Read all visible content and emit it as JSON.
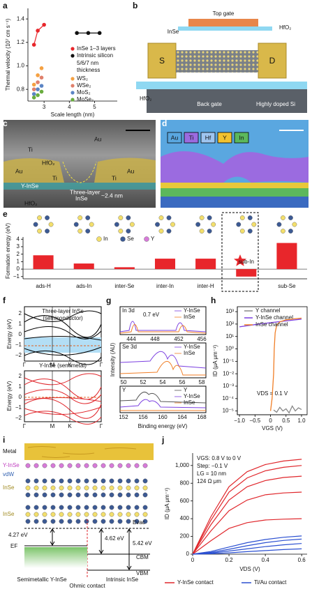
{
  "panel_labels": [
    "a",
    "b",
    "c",
    "d",
    "e",
    "f",
    "g",
    "h",
    "i",
    "j"
  ],
  "chart_data": [
    {
      "type": "scatter",
      "ylabel": "Thermal velocity (10⁷ cm s⁻¹)",
      "xlabel": "Scale length (nm)",
      "xlim": [
        2.36,
        5.9
      ],
      "xticks": [
        3,
        4,
        5
      ],
      "ylim": [
        0.7,
        1.49
      ],
      "yticks": [
        0.8,
        {
          "value": 1,
          "label": "1.0"
        },
        1.2,
        1.4
      ],
      "legend_note": [
        "5/6/7 nm",
        "thickness"
      ],
      "series": [
        {
          "name": "InSe 1–3 layers",
          "color": "#e8262b",
          "x": [
            2.6,
            2.75,
            3.0
          ],
          "values": [
            1.18,
            1.3,
            1.35
          ],
          "line": true
        },
        {
          "name": "Intrinsic silicon",
          "color": "#111111",
          "x": [
            4.3,
            4.75,
            5.2
          ],
          "values": [
            1.28,
            1.28,
            1.28
          ],
          "line": true
        },
        {
          "name": "WS₂",
          "color": "#f5a142",
          "x": [
            2.6,
            2.75,
            2.9
          ],
          "values": [
            0.84,
            0.92,
            0.98
          ]
        },
        {
          "name": "WSe₂",
          "color": "#e0806c",
          "x": [
            2.6,
            2.75,
            2.9
          ],
          "values": [
            0.8,
            0.86,
            0.9
          ]
        },
        {
          "name": "MoS₂",
          "color": "#5b84c4",
          "x": [
            2.6,
            2.75,
            2.9
          ],
          "values": [
            0.76,
            0.8,
            0.83
          ]
        },
        {
          "name": "MoSe₂",
          "color": "#6aad3f",
          "x": [
            2.6,
            2.75,
            2.9
          ],
          "values": [
            0.73,
            0.75,
            0.78
          ]
        }
      ]
    },
    {
      "type": "bar",
      "ylabel": "Formation energy (eV)",
      "categories": [
        "ads-H",
        "ads-In",
        "inter-Se",
        "inter-In",
        "inter-H",
        "sub-In",
        "sub-Se"
      ],
      "values": [
        1.85,
        0.75,
        0.25,
        1.4,
        1.4,
        -1.0,
        3.5
      ],
      "color": "#e8262b",
      "ylim": [
        -1.3,
        4.3
      ],
      "yticks": [
        {
          "value": -1,
          "label": "−1"
        },
        0,
        1,
        2,
        3,
        4
      ],
      "legend": [
        {
          "name": "In",
          "color": "#f3df6c"
        },
        {
          "name": "Se",
          "color": "#3c5a94"
        },
        {
          "name": "Y",
          "color": "#d77bd9"
        }
      ]
    },
    {
      "type": "line",
      "log_y": true,
      "ylabel": "ID (μA μm⁻¹)",
      "xlabel": "VGS (V)",
      "annotation": "VDS = 0.1 V",
      "xlim": [
        -1.07,
        1.18
      ],
      "xticks": [
        {
          "value": -1,
          "label": "−1.0"
        },
        {
          "value": -0.5,
          "label": "−0.5"
        },
        0,
        0.5,
        {
          "value": 1,
          "label": "1.0"
        }
      ],
      "ylim": [
        5e-06,
        2500
      ],
      "yticks": [
        {
          "value": 1000,
          "label": "10³"
        },
        {
          "value": 100,
          "label": "10²"
        },
        {
          "value": 10,
          "label": "10¹"
        },
        {
          "value": 1,
          "label": "10⁰"
        },
        {
          "value": 0.1,
          "label": "10⁻¹"
        },
        {
          "value": 0.01,
          "label": "10⁻²"
        },
        {
          "value": 0.001,
          "label": "10⁻³"
        },
        {
          "value": 0.0001,
          "label": "10⁻⁴"
        },
        {
          "value": 1e-05,
          "label": "10⁻⁵"
        }
      ],
      "series": [
        {
          "name": "Y channel",
          "color": "#888888",
          "x": [
            0.1,
            0.2,
            0.3,
            0.4,
            0.5,
            0.6,
            0.7,
            0.8,
            0.9,
            1.0
          ],
          "values": [
            1.2e-05,
            8e-06,
            2e-05,
            1e-05,
            1.5e-05,
            7e-06,
            2.5e-05,
            1e-05,
            1.8e-05,
            1.3e-05
          ]
        },
        {
          "name": "Y-InSe channel",
          "color": "#7b3fe0",
          "x": [
            -1,
            -0.5,
            0,
            0.5,
            1
          ],
          "values": [
            60,
            90,
            130,
            180,
            250
          ]
        },
        {
          "name": "InSe channel",
          "color": "#f07e26",
          "x": [
            0,
            0.05,
            0.1,
            0.12,
            0.15,
            0.2,
            0.3,
            0.5,
            0.75,
            1.0
          ],
          "values": [
            1e-05,
            0.0001,
            0.01,
            1,
            20,
            80,
            150,
            220,
            260,
            300
          ]
        }
      ]
    },
    {
      "type": "line",
      "ylabel": "ID (μA μm⁻¹)",
      "xlabel": "VDS (V)",
      "annotations": [
        "VGS: 0.8 V to 0 V",
        "Step: −0.1 V",
        "LG = 10 nm",
        "124 Ω μm"
      ],
      "xlim": [
        0,
        0.63
      ],
      "xticks": [
        0,
        0.2,
        0.4,
        0.6
      ],
      "ylim": [
        0,
        1140
      ],
      "yticks": [
        0,
        200,
        400,
        600,
        800,
        {
          "value": 1000,
          "label": "1,000"
        }
      ],
      "x": [
        0,
        0.1,
        0.2,
        0.3,
        0.4,
        0.5,
        0.6
      ],
      "series": [
        {
          "name": "Y-InSe contact",
          "color": "#e0262b",
          "curves": [
            [
              0,
              420,
              760,
              930,
              1010,
              1050,
              1070
            ],
            [
              0,
              380,
              700,
              860,
              940,
              980,
              1000
            ],
            [
              0,
              330,
              610,
              760,
              830,
              865,
              880
            ],
            [
              0,
              260,
              490,
              610,
              670,
              690,
              700
            ],
            [
              0,
              150,
              290,
              355,
              385,
              395,
              400
            ]
          ]
        },
        {
          "name": "Ti/Au contact",
          "color": "#2a4fd1",
          "curves": [
            [
              0,
              30,
              80,
              130,
              165,
              190,
              205
            ],
            [
              0,
              20,
              55,
              95,
              130,
              155,
              170
            ],
            [
              0,
              12,
              35,
              60,
              85,
              105,
              120
            ],
            [
              0,
              5,
              15,
              28,
              40,
              52,
              60
            ]
          ]
        }
      ]
    }
  ],
  "b": [
    "Top gate",
    "InSe",
    "HfO₂",
    "S",
    "D",
    "HfO₂",
    "Back gate",
    "Highly doped Si"
  ],
  "c": [
    "Au",
    "Ti",
    "HfO₂",
    "Au",
    "Au",
    "Y-InSe",
    "Ti",
    "Ti",
    "Three-layer",
    "InSe",
    "~2.4 nm",
    "HfO₂"
  ],
  "d": [
    "Au",
    "Ti",
    "Hf",
    "Y",
    "In"
  ],
  "f": {
    "top_title": [
      "Three-layer InSe",
      "(semiconductor)"
    ],
    "bottom_title": "Y-InSe (semimetal)",
    "ylabels": [
      "Energy (eV)",
      "Energy (eV)"
    ],
    "top_yticks": [
      "2",
      "1",
      "0",
      "−1",
      "−2"
    ],
    "bottom_yticks": [
      "2",
      "1",
      "0",
      "−1",
      "−2"
    ],
    "top_kpoints": [
      "Γ",
      "M",
      "K",
      "Γ"
    ],
    "bottom_kpoints": [
      "Γ",
      "M",
      "K",
      "Γ"
    ]
  },
  "g": {
    "titles": [
      "In 3d",
      "Se 3d",
      "Y"
    ],
    "shift": "0.7 eV",
    "legend1": [
      "Y-InSe",
      "InSe"
    ],
    "legend2": [
      "Y-InSe",
      "InSe"
    ],
    "legend3": [
      "Y",
      "Y-InSe",
      "InSe"
    ],
    "xticks1": [
      "444",
      "448",
      "452",
      "456"
    ],
    "xticks2": [
      "50",
      "52",
      "54",
      "56",
      "58"
    ],
    "xticks3": [
      "152",
      "156",
      "160",
      "164",
      "168"
    ],
    "ylabel": "Intensity (AU)",
    "xlabel": "Binding energy (eV)"
  },
  "i": [
    "Metal",
    "Y-InSe",
    "vdW",
    "InSe",
    "InSe",
    "4.27 eV",
    "4.62 eV",
    "5.42 eV",
    "Evac",
    "EF",
    "CBM",
    "VBM",
    "Semimetallic Y-InSe",
    "Ohmic contact",
    "Intrinsic InSe"
  ]
}
